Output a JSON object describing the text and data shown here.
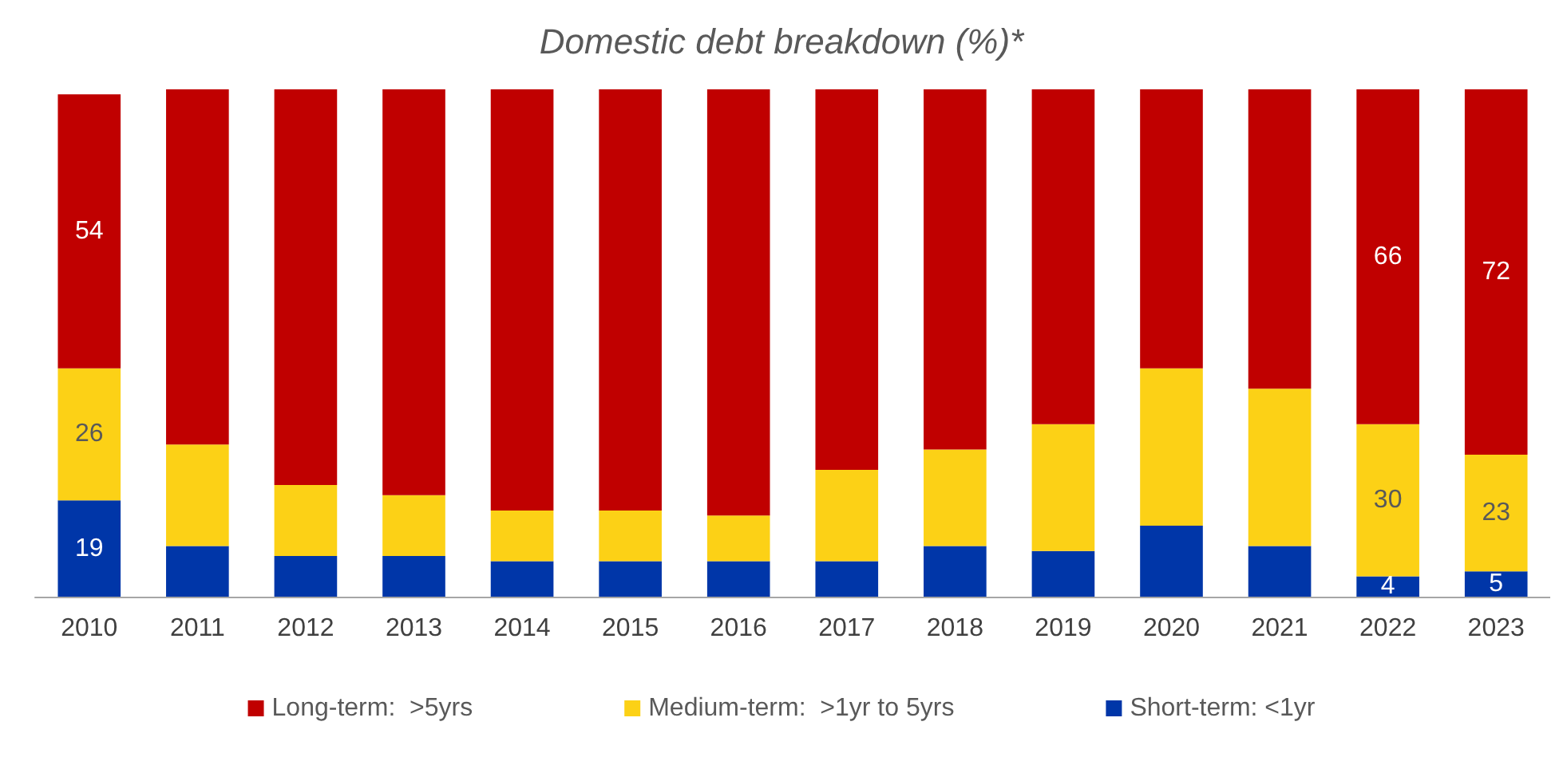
{
  "chart_data": {
    "type": "bar",
    "title": "Domestic debt breakdown (%)*",
    "stacked": true,
    "categories": [
      "2010",
      "2011",
      "2012",
      "2013",
      "2014",
      "2015",
      "2016",
      "2017",
      "2018",
      "2019",
      "2020",
      "2021",
      "2022",
      "2023"
    ],
    "series": [
      {
        "name": "Short-term: <1yr",
        "color": "#0036a8",
        "values": [
          19,
          10,
          8,
          8,
          7,
          7,
          7,
          7,
          10,
          9,
          14,
          10,
          4,
          5
        ],
        "value_labels": [
          "19",
          null,
          null,
          null,
          null,
          null,
          null,
          null,
          null,
          null,
          null,
          null,
          "4",
          "5"
        ]
      },
      {
        "name": "Medium-term:  >1yr to 5yrs",
        "color": "#fcd116",
        "values": [
          26,
          20,
          14,
          12,
          10,
          10,
          9,
          18,
          19,
          25,
          31,
          31,
          30,
          23
        ],
        "value_labels": [
          "26",
          null,
          null,
          null,
          null,
          null,
          null,
          null,
          null,
          null,
          null,
          null,
          "30",
          "23"
        ]
      },
      {
        "name": "Long-term:  >5yrs",
        "color": "#c00000",
        "values": [
          54,
          70,
          78,
          80,
          83,
          83,
          84,
          75,
          71,
          66,
          55,
          59,
          66,
          72
        ],
        "value_labels": [
          "54",
          null,
          null,
          null,
          null,
          null,
          null,
          null,
          null,
          null,
          null,
          null,
          "66",
          "72"
        ]
      }
    ],
    "ylim": [
      0,
      100
    ],
    "tick_labels": "x",
    "legend": "bottom"
  }
}
